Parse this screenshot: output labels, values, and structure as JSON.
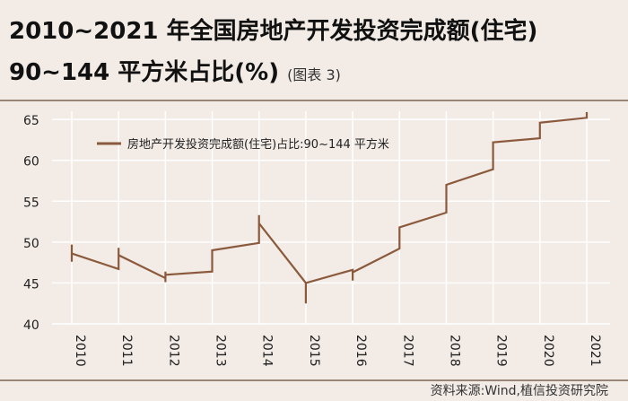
{
  "title_line1": "2010~2021 年全国房地产开发投资完成额(住宅)",
  "title_line2": "90~144 平方米占比(%)",
  "title_suffix": "(图表 3)",
  "source": "资料来源:Wind,植信投资研究院",
  "colors": {
    "line": "#8b5a3c",
    "background": "#f2ebe6",
    "grid": "#ffffff",
    "rule": "#9a8579"
  },
  "chart_data": {
    "type": "line",
    "title": "",
    "xlabel": "",
    "ylabel": "",
    "categories": [
      "2010",
      "2011",
      "2012",
      "2013",
      "2014",
      "2015",
      "2016",
      "2017",
      "2018",
      "2019",
      "2020",
      "2021"
    ],
    "ylim": [
      40,
      66
    ],
    "yticks": [
      40,
      45,
      50,
      55,
      60,
      65
    ],
    "grid": true,
    "legend_position": "top-left",
    "series": [
      {
        "name": "房地产开发投资完成额(住宅)占比:90~144 平方米",
        "points": [
          [
            0.0,
            47.6
          ],
          [
            0.0,
            49.7
          ],
          [
            0.0,
            48.6
          ],
          [
            1.0,
            46.7
          ],
          [
            1.0,
            46.7
          ],
          [
            1.0,
            49.3
          ],
          [
            1.0,
            48.4
          ],
          [
            2.0,
            45.6
          ],
          [
            2.0,
            45.1
          ],
          [
            2.0,
            46.4
          ],
          [
            2.0,
            46.0
          ],
          [
            3.0,
            46.4
          ],
          [
            3.0,
            46.4
          ],
          [
            3.0,
            49.0
          ],
          [
            3.0,
            49.0
          ],
          [
            4.0,
            49.9
          ],
          [
            4.0,
            49.9
          ],
          [
            4.0,
            53.3
          ],
          [
            4.0,
            52.3
          ],
          [
            5.0,
            45.0
          ],
          [
            5.0,
            42.5
          ],
          [
            5.0,
            45.0
          ],
          [
            6.0,
            46.6
          ],
          [
            6.0,
            45.3
          ],
          [
            6.0,
            46.3
          ],
          [
            7.0,
            49.2
          ],
          [
            7.0,
            49.2
          ],
          [
            7.0,
            51.8
          ],
          [
            7.0,
            51.8
          ],
          [
            8.0,
            53.6
          ],
          [
            8.0,
            53.6
          ],
          [
            8.0,
            56.9
          ],
          [
            8.0,
            57.0
          ],
          [
            9.0,
            58.9
          ],
          [
            9.0,
            58.9
          ],
          [
            9.0,
            62.1
          ],
          [
            9.0,
            62.2
          ],
          [
            10.0,
            62.7
          ],
          [
            10.0,
            63.0
          ],
          [
            10.0,
            64.6
          ],
          [
            10.0,
            64.6
          ],
          [
            11.0,
            65.2
          ],
          [
            11.0,
            65.2
          ],
          [
            11.0,
            65.9
          ]
        ]
      }
    ]
  }
}
